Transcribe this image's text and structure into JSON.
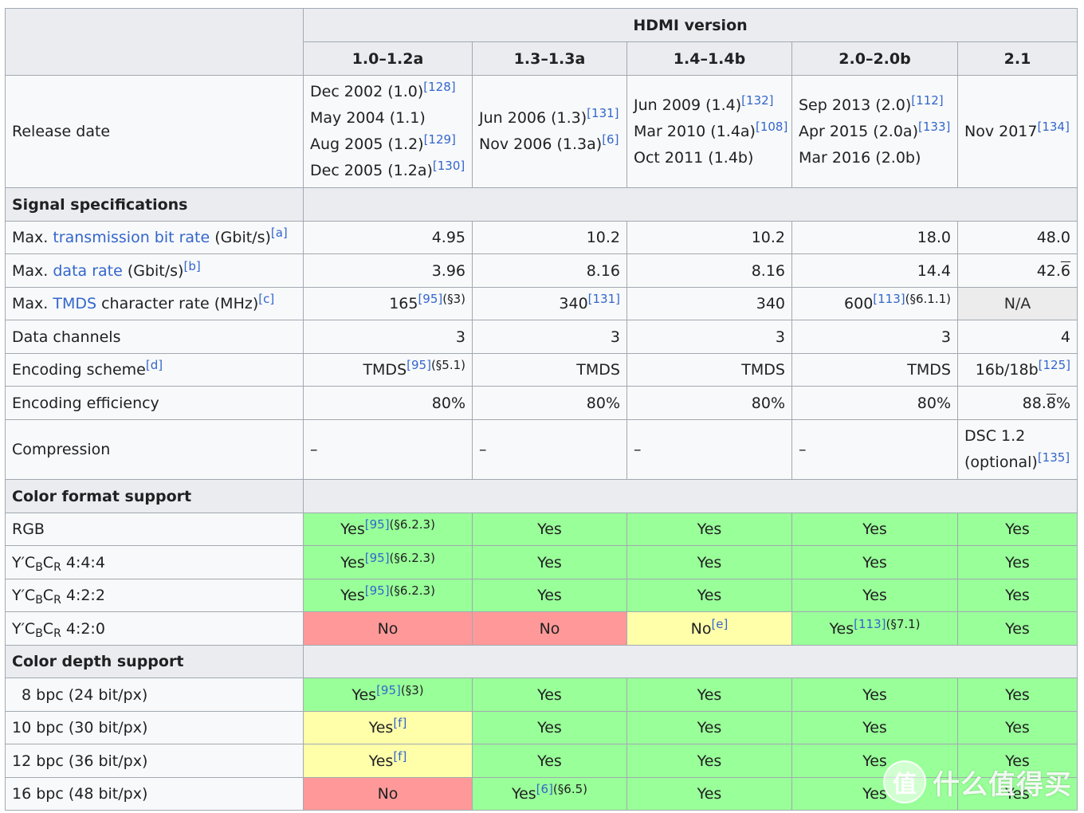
{
  "header": {
    "group_label": "HDMI version",
    "versions": [
      "1.0–1.2a",
      "1.3–1.3a",
      "1.4–1.4b",
      "2.0–2.0b",
      "2.1"
    ]
  },
  "release": {
    "label": "Release date",
    "v1": [
      {
        "text": "Dec 2002 (1.0)",
        "ref": "[128]"
      },
      {
        "text": "May 2004 (1.1)",
        "ref": ""
      },
      {
        "text": "Aug 2005 (1.2)",
        "ref": "[129]"
      },
      {
        "text": "Dec 2005 (1.2a)",
        "ref": "[130]"
      }
    ],
    "v2": [
      {
        "text": "Jun 2006 (1.3)",
        "ref": "[131]"
      },
      {
        "text": "Nov 2006 (1.3a)",
        "ref": "[6]"
      }
    ],
    "v3": [
      {
        "text": "Jun 2009 (1.4)",
        "ref": "[132]"
      },
      {
        "text": "Mar 2010 (1.4a)",
        "ref": "[108]"
      },
      {
        "text": "Oct 2011 (1.4b)",
        "ref": ""
      }
    ],
    "v4": [
      {
        "text": "Sep 2013 (2.0)",
        "ref": "[112]"
      },
      {
        "text": "Apr 2015 (2.0a)",
        "ref": "[133]"
      },
      {
        "text": "Mar 2016 (2.0b)",
        "ref": ""
      }
    ],
    "v5": [
      {
        "text": "Nov 2017",
        "ref": "[134]"
      }
    ]
  },
  "signal": {
    "title": "Signal specifications",
    "tbr": {
      "pre": "Max. ",
      "link": "transmission bit rate",
      "post": " (Gbit/s)",
      "note": "[a]",
      "values": [
        "4.95",
        "10.2",
        "10.2",
        "18.0",
        "48.0"
      ]
    },
    "dr": {
      "pre": "Max. ",
      "link": "data rate",
      "post": " (Gbit/s)",
      "note": "[b]",
      "values": [
        "3.96",
        "8.16",
        "8.16",
        "14.4"
      ],
      "v5_int": "42.",
      "v5_rep": "6"
    },
    "tmds": {
      "pre": "Max. ",
      "link": "TMDS",
      "post": " character rate (MHz)",
      "note": "[c]",
      "v1": "165",
      "v1_ref": "[95]",
      "v1_page": "(§3)",
      "v2": "340",
      "v2_ref": "[131]",
      "v3": "340",
      "v4": "600",
      "v4_ref": "[113]",
      "v4_page": "(§6.1.1)",
      "v5": "N/A"
    },
    "channels": {
      "label": "Data channels",
      "values": [
        "3",
        "3",
        "3",
        "3",
        "4"
      ]
    },
    "encoding": {
      "label": "Encoding scheme",
      "note": "[d]",
      "v1": "TMDS",
      "v1_ref": "[95]",
      "v1_page": "(§5.1)",
      "v2": "TMDS",
      "v3": "TMDS",
      "v4": "TMDS",
      "v5": "16b/18b",
      "v5_ref": "[125]"
    },
    "efficiency": {
      "label": "Encoding efficiency",
      "values": [
        "80%",
        "80%",
        "80%",
        "80%"
      ],
      "v5_int": "88.",
      "v5_rep": "8",
      "v5_suffix": "%"
    },
    "compression": {
      "label": "Compression",
      "values": [
        "–",
        "–",
        "–",
        "–"
      ],
      "v5_line1": "DSC 1.2",
      "v5_line2": "(optional)",
      "v5_ref": "[135]"
    }
  },
  "color_format": {
    "title": "Color format support",
    "yes": "Yes",
    "no": "No",
    "ref95": "[95]",
    "page623": "(§6.2.3)",
    "rgb_label": "RGB",
    "ycc_y": "Y′C",
    "ycc_b": "B",
    "ycc_c": "C",
    "ycc_r": "R",
    "s444": " 4:4:4",
    "s422": " 4:2:2",
    "s420": " 4:2:0",
    "note_e": "[e]",
    "ref113": "[113]",
    "page71": "(§7.1)"
  },
  "color_depth": {
    "title": "Color depth support",
    "yes": "Yes",
    "no": "No",
    "bpc8": "8 bpc (24 bit/px)",
    "bpc10": "10 bpc (30 bit/px)",
    "bpc12": "12 bpc (36 bit/px)",
    "bpc16": "16 bpc (48 bit/px)",
    "ref95": "[95]",
    "page3": "(§3)",
    "note_f": "[f]",
    "ref6": "[6]",
    "page65": "(§6.5)"
  },
  "watermark": {
    "icon_char": "值",
    "text": "什么值得买"
  }
}
